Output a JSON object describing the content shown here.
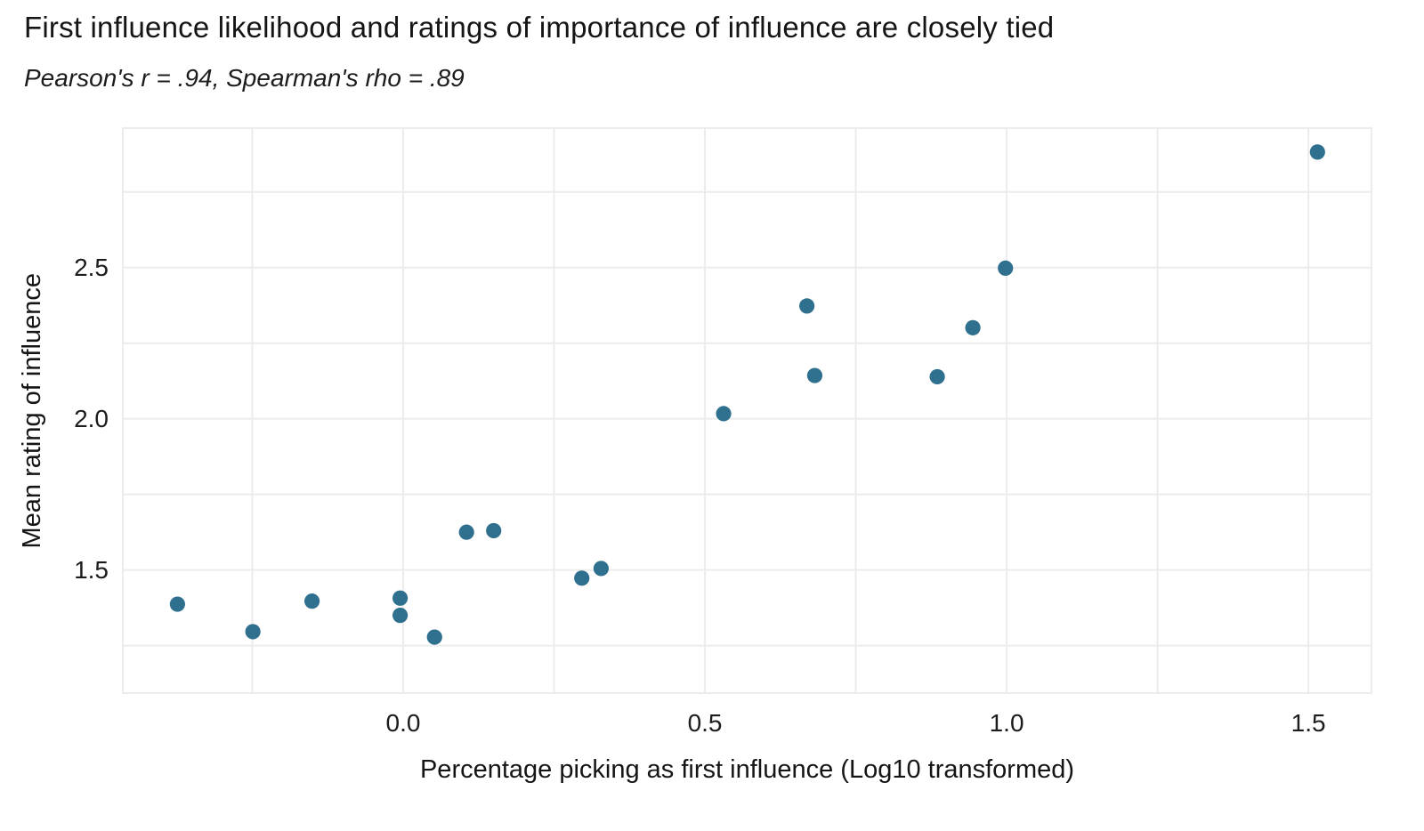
{
  "chart_data": {
    "type": "scatter",
    "title": "First influence likelihood and ratings of importance of influence are closely tied",
    "subtitle": "Pearson's r = .94, Spearman's rho = .89",
    "pearson_r": 0.94,
    "spearman_rho": 0.89,
    "xlabel": "Percentage picking as first influence (Log10 transformed)",
    "ylabel": "Mean rating of influence",
    "xlim": [
      -0.466,
      1.606
    ],
    "ylim": [
      1.09,
      2.964
    ],
    "grid": true,
    "legend_position": "none",
    "x_gridlines": [
      -0.25,
      0.0,
      0.25,
      0.5,
      0.75,
      1.0,
      1.25,
      1.5
    ],
    "y_gridlines": [
      1.25,
      1.5,
      1.75,
      2.0,
      2.25,
      2.5,
      2.75
    ],
    "x_ticks": {
      "values": [
        0.0,
        0.5,
        1.0,
        1.5
      ],
      "labels": [
        "0.0",
        "0.5",
        "1.0",
        "1.5"
      ]
    },
    "y_ticks": {
      "values": [
        1.5,
        2.0,
        2.5
      ],
      "labels": [
        "1.5",
        "2.0",
        "2.5"
      ]
    },
    "point_color": "#30708f",
    "gridline_color": "#ececec",
    "background_color": "#ffffff",
    "text_color": "#1a1a1a",
    "points": [
      {
        "x": -0.374,
        "y": 1.387
      },
      {
        "x": -0.249,
        "y": 1.296
      },
      {
        "x": -0.151,
        "y": 1.397
      },
      {
        "x": -0.005,
        "y": 1.407
      },
      {
        "x": -0.005,
        "y": 1.35
      },
      {
        "x": 0.052,
        "y": 1.278
      },
      {
        "x": 0.105,
        "y": 1.625
      },
      {
        "x": 0.15,
        "y": 1.63
      },
      {
        "x": 0.296,
        "y": 1.473
      },
      {
        "x": 0.328,
        "y": 1.505
      },
      {
        "x": 0.531,
        "y": 2.017
      },
      {
        "x": 0.669,
        "y": 2.373
      },
      {
        "x": 0.682,
        "y": 2.143
      },
      {
        "x": 0.885,
        "y": 2.139
      },
      {
        "x": 0.944,
        "y": 2.301
      },
      {
        "x": 0.998,
        "y": 2.498
      },
      {
        "x": 1.515,
        "y": 2.882
      }
    ]
  }
}
